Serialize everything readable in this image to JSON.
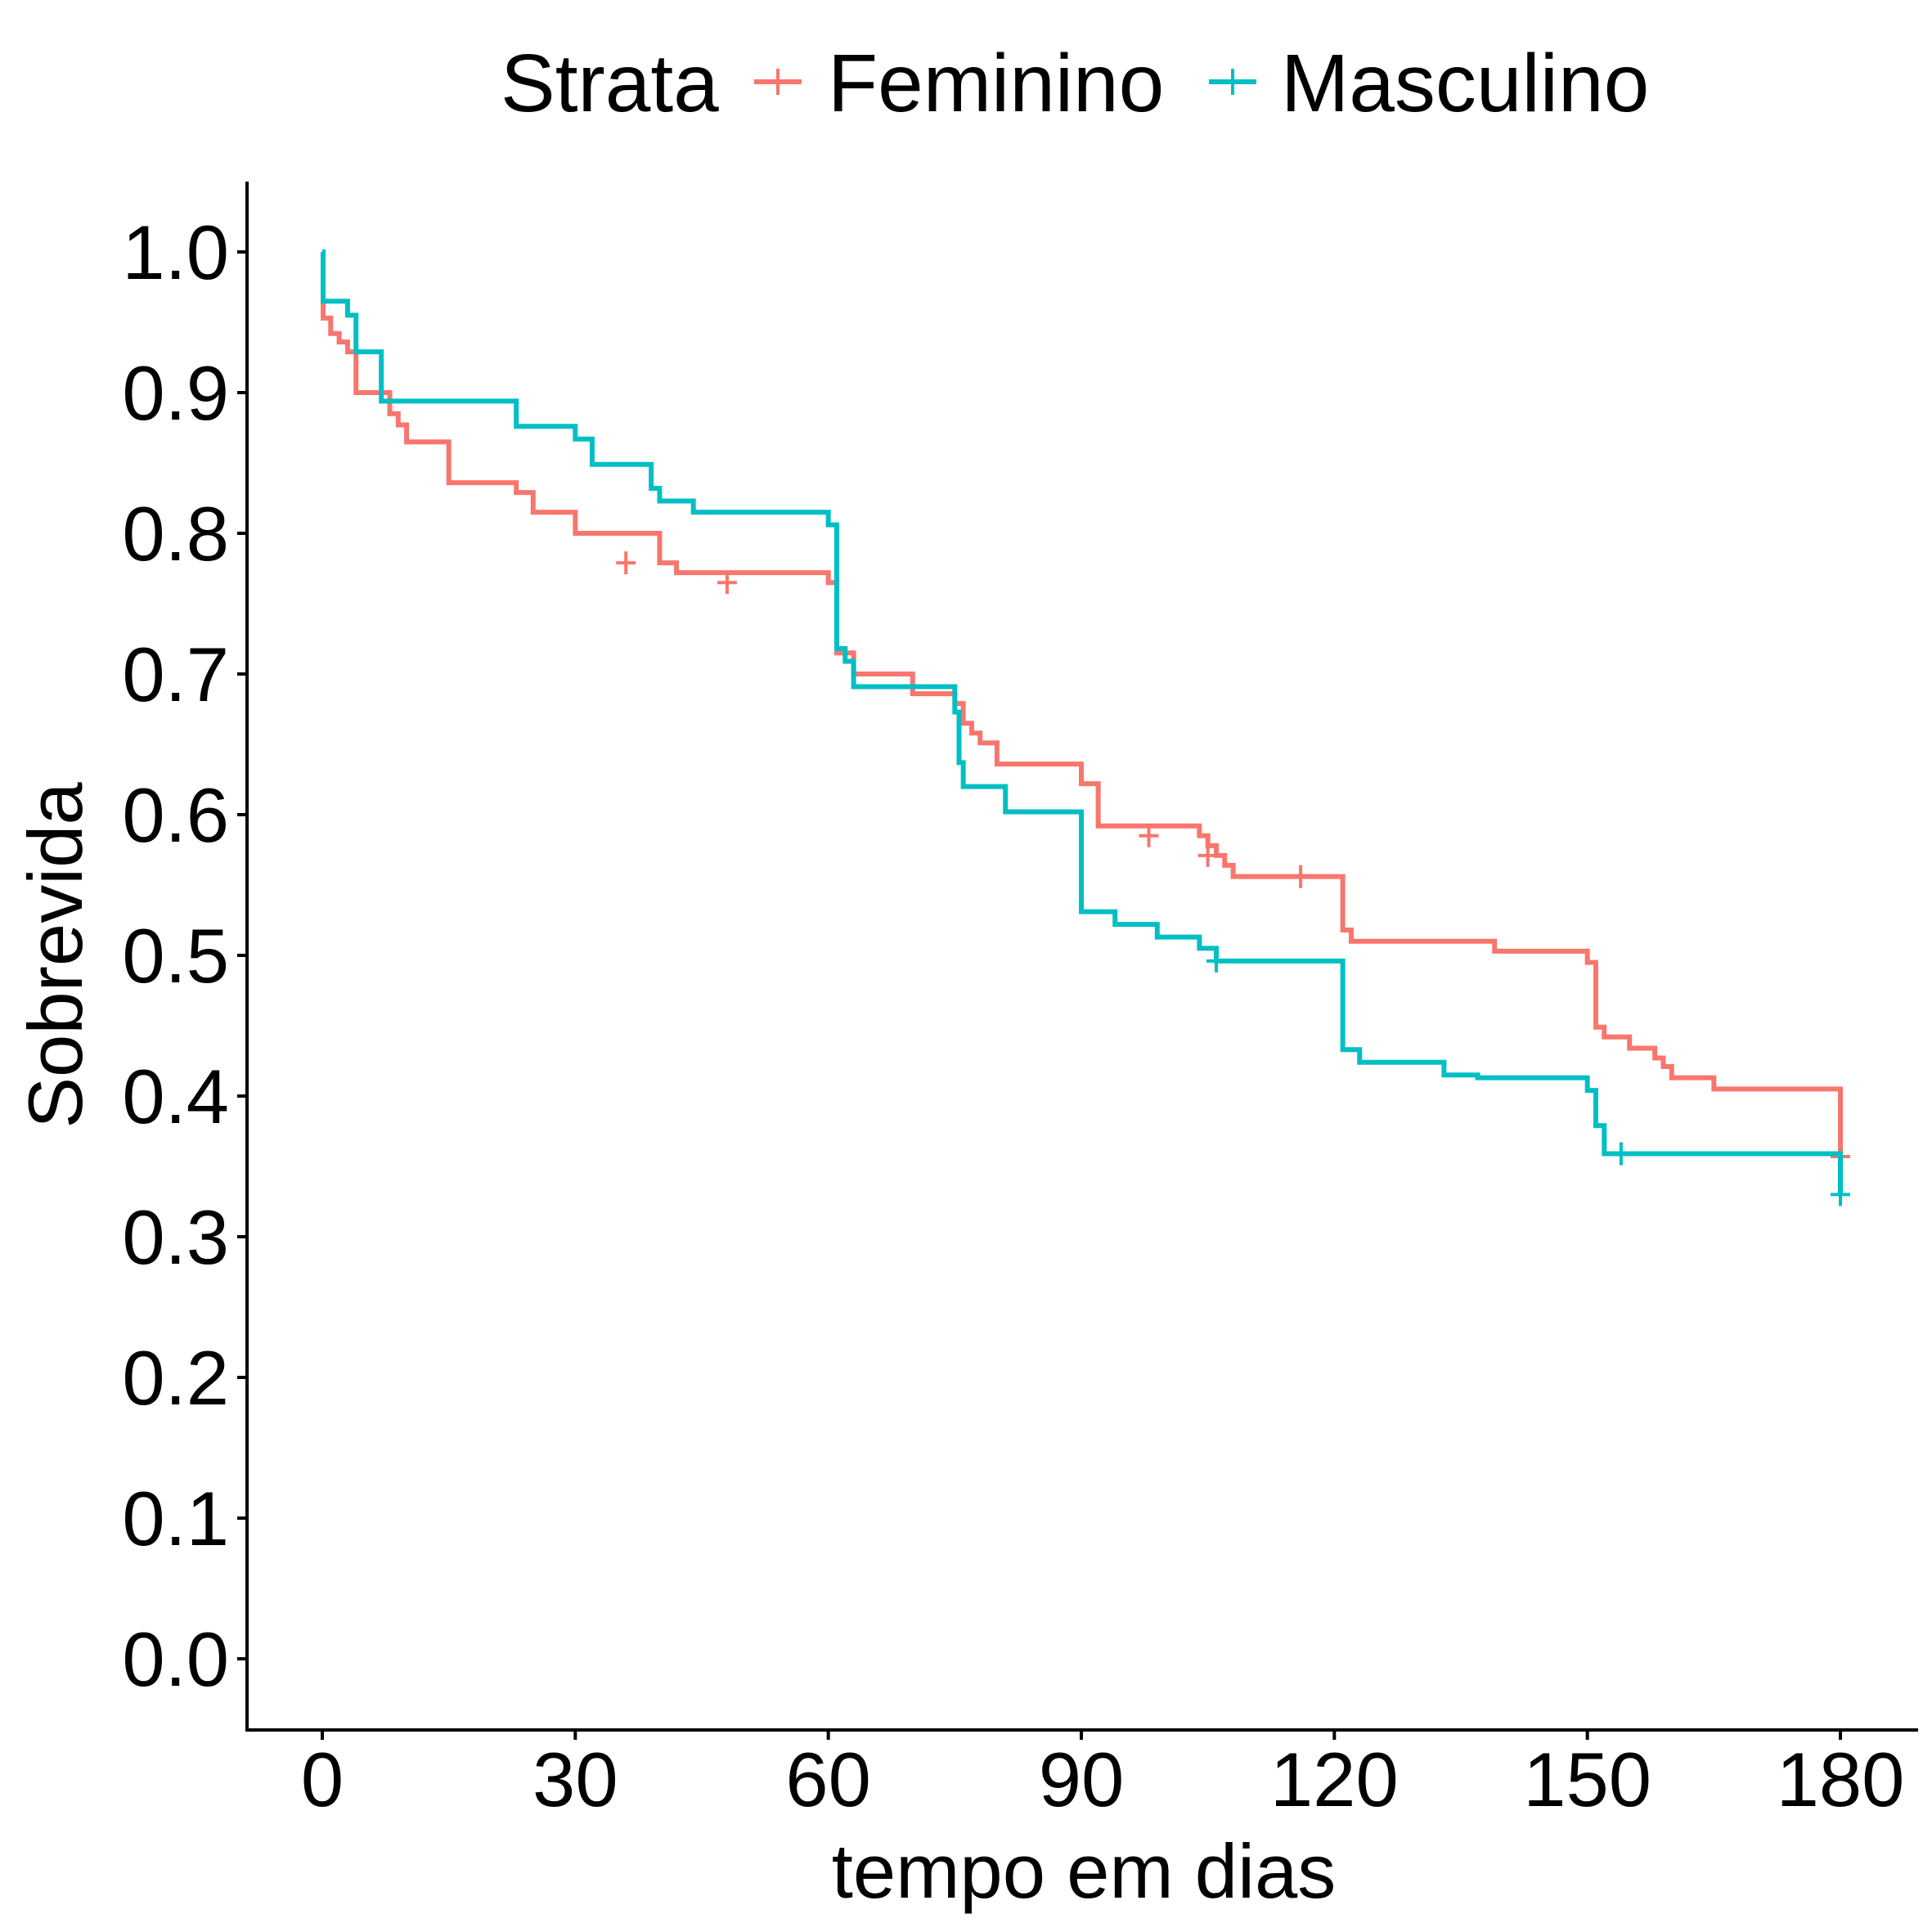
{
  "chart_data": {
    "type": "line",
    "step": "post",
    "xlabel": "tempo em dias",
    "ylabel": "Sobrevida",
    "xlim": [
      -9,
      188
    ],
    "ylim": [
      -0.05,
      1.05
    ],
    "x_ticks": [
      0,
      30,
      60,
      90,
      120,
      150,
      180
    ],
    "x_tick_labels": [
      "0",
      "30",
      "60",
      "90",
      "120",
      "150",
      "180"
    ],
    "y_ticks": [
      0.0,
      0.1,
      0.2,
      0.3,
      0.4,
      0.5,
      0.6,
      0.7,
      0.8,
      0.9,
      1.0
    ],
    "y_tick_labels": [
      "0.0",
      "0.1",
      "0.2",
      "0.3",
      "0.4",
      "0.5",
      "0.6",
      "0.7",
      "0.8",
      "0.9",
      "1.0"
    ],
    "grid": false,
    "legend": {
      "title": "Strata",
      "position": "top",
      "entries": [
        "Feminino",
        "Masculino"
      ]
    },
    "series": [
      {
        "name": "Feminino",
        "color": "#F8766D",
        "x": [
          0,
          0.1,
          1,
          2,
          3,
          4,
          8,
          9,
          10,
          15,
          22,
          23,
          25,
          30,
          40,
          42,
          60,
          61,
          63,
          70,
          75,
          76,
          77,
          78,
          80,
          90,
          92,
          104,
          105,
          106,
          107,
          108,
          120,
          121,
          122,
          139,
          150,
          151,
          152,
          155,
          158,
          159,
          160,
          165,
          180
        ],
        "y": [
          1.0,
          0.953,
          0.942,
          0.936,
          0.929,
          0.9,
          0.885,
          0.877,
          0.865,
          0.836,
          0.836,
          0.829,
          0.815,
          0.8,
          0.779,
          0.772,
          0.765,
          0.715,
          0.7,
          0.686,
          0.679,
          0.665,
          0.658,
          0.651,
          0.636,
          0.622,
          0.592,
          0.585,
          0.578,
          0.571,
          0.564,
          0.556,
          0.556,
          0.518,
          0.51,
          0.503,
          0.495,
          0.449,
          0.442,
          0.434,
          0.427,
          0.421,
          0.413,
          0.405,
          0.396
        ],
        "end": 0.357,
        "censor_x": [
          36,
          48,
          98,
          105,
          116,
          180
        ],
        "censor_y": [
          0.779,
          0.765,
          0.585,
          0.571,
          0.556,
          0.357
        ]
      },
      {
        "name": "Masculino",
        "color": "#00BFC4",
        "x": [
          0,
          0.1,
          3,
          4,
          7,
          20,
          23,
          30,
          32,
          39,
          40,
          44,
          60,
          61,
          62,
          63,
          75,
          75.5,
          76,
          81,
          90,
          94,
          99,
          104,
          106,
          120,
          121,
          123,
          133,
          137,
          150,
          151,
          152,
          180
        ],
        "y": [
          1.0,
          0.965,
          0.955,
          0.929,
          0.894,
          0.894,
          0.876,
          0.867,
          0.849,
          0.832,
          0.823,
          0.815,
          0.806,
          0.718,
          0.709,
          0.691,
          0.673,
          0.637,
          0.62,
          0.602,
          0.531,
          0.522,
          0.513,
          0.505,
          0.496,
          0.496,
          0.433,
          0.424,
          0.415,
          0.413,
          0.404,
          0.379,
          0.359,
          0.359
        ],
        "end": 0.33,
        "censor_x": [
          106,
          154,
          180
        ],
        "censor_y": [
          0.496,
          0.359,
          0.33
        ]
      }
    ]
  }
}
